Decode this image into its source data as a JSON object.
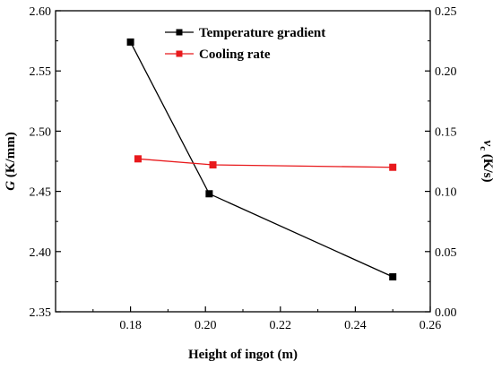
{
  "chart_data": {
    "type": "line",
    "x_axis": {
      "label": "Height of ingot (m)",
      "range": [
        0.16,
        0.26
      ],
      "ticks": [
        "0.18",
        "0.20",
        "0.22",
        "0.24",
        "0.26"
      ]
    },
    "y_axis_left": {
      "label_main": "G",
      "label_unit": " (K/mm)",
      "range": [
        2.35,
        2.6
      ],
      "ticks": [
        "2.35",
        "2.40",
        "2.45",
        "2.50",
        "2.55",
        "2.60"
      ]
    },
    "y_axis_right": {
      "label_main": "v",
      "label_sub": "c",
      "label_unit": " (K/s)",
      "range": [
        0.0,
        0.25
      ],
      "ticks": [
        "0.00",
        "0.05",
        "0.10",
        "0.15",
        "0.20",
        "0.25"
      ]
    },
    "series": [
      {
        "name": "Temperature gradient",
        "axis": "left",
        "color": "#000000",
        "marker": "square",
        "x": [
          0.18,
          0.201,
          0.25
        ],
        "y": [
          2.574,
          2.448,
          2.379
        ]
      },
      {
        "name": "Cooling rate",
        "axis": "right",
        "color": "#e8191c",
        "marker": "square",
        "x": [
          0.182,
          0.202,
          0.25
        ],
        "y": [
          0.127,
          0.122,
          0.12
        ]
      }
    ],
    "legend_position": "top-center",
    "grid": false
  }
}
